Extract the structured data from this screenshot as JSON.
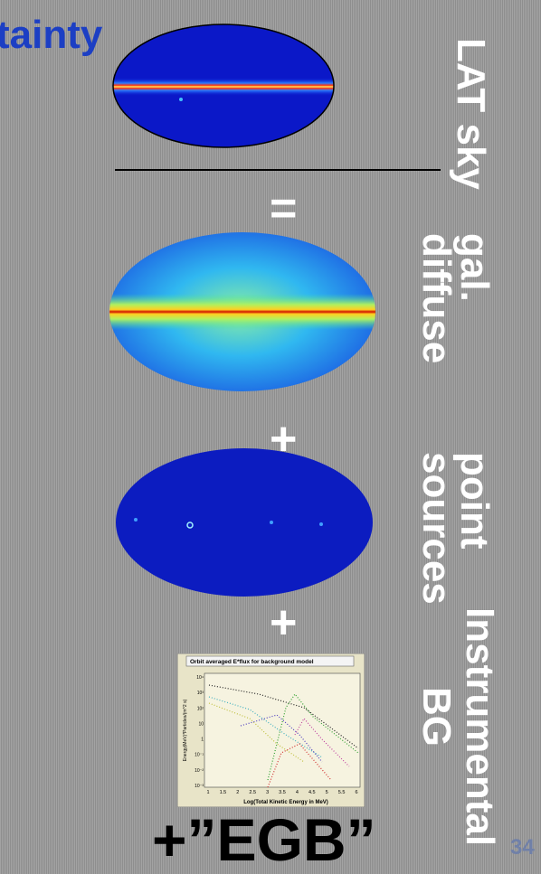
{
  "slide": {
    "title_fragment": "tainty",
    "terms": [
      {
        "label": "LAT sky"
      },
      {
        "label": "gal.",
        "label2": "diffuse"
      },
      {
        "label": "point",
        "label2": "sources"
      },
      {
        "label": "Instrumental",
        "label2": "BG"
      }
    ],
    "operators": [
      "=",
      "+",
      "+",
      "+"
    ],
    "egb": "+”EGB”",
    "page_number": "34",
    "inset": {
      "title": "Orbit averaged E*flux for background model",
      "y_label": "Energy(MeV)*Particles/(m^2 s)",
      "x_label": "Log(Total Kinetic Energy in MeV)",
      "y_ticks": [
        "10⁴",
        "10³",
        "10²",
        "10",
        "1",
        "10⁻¹",
        "10⁻²",
        "10⁻³"
      ],
      "x_ticks": [
        "1",
        "1.5",
        "2",
        "2.5",
        "3",
        "3.5",
        "4",
        "4.5",
        "5",
        "5.5",
        "6"
      ]
    }
  }
}
